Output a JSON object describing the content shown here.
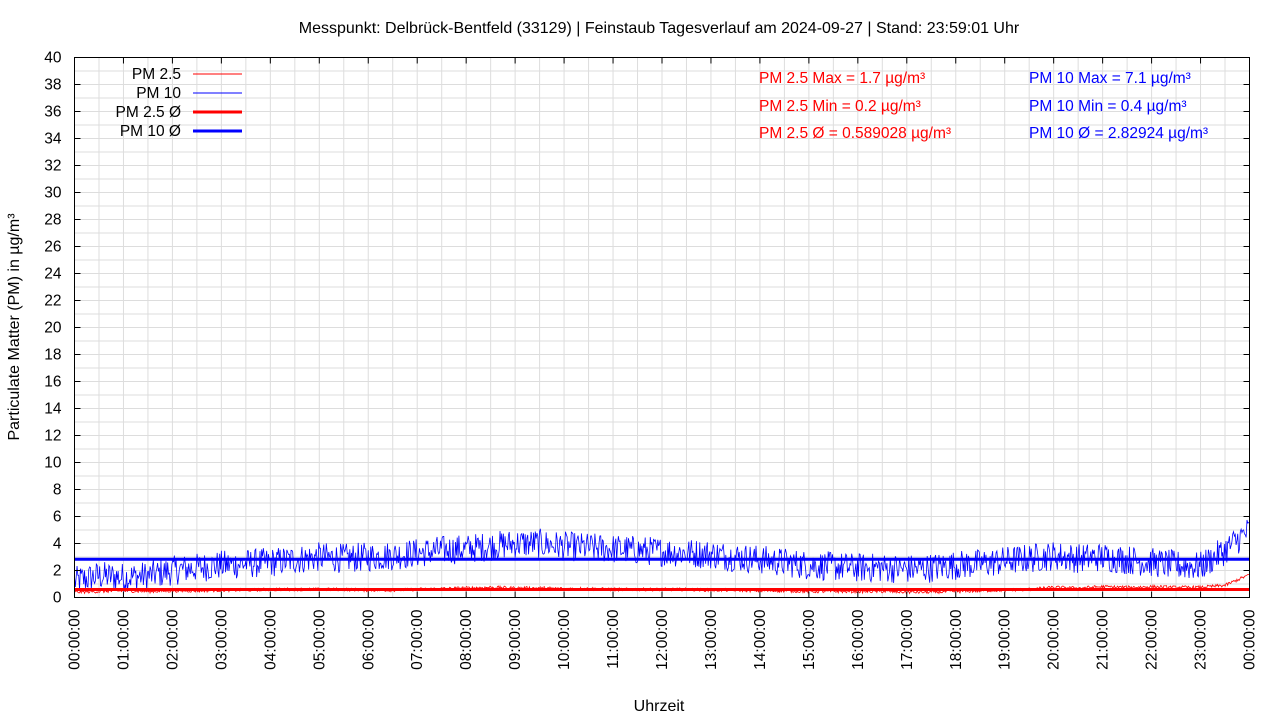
{
  "chart_data": {
    "type": "line",
    "title": "Messpunkt: Delbrück-Bentfeld (33129) | Feinstaub Tagesverlauf am 2024-09-27 | Stand: 23:59:01 Uhr",
    "xlabel": "Uhrzeit",
    "ylabel": "Particulate Matter (PM) in µg/m³",
    "ylim": [
      0,
      40
    ],
    "y_ticks": [
      "0",
      "2",
      "4",
      "6",
      "8",
      "10",
      "12",
      "14",
      "16",
      "18",
      "20",
      "22",
      "24",
      "26",
      "28",
      "30",
      "32",
      "34",
      "36",
      "38",
      "40"
    ],
    "x_ticks": [
      "00:00:00",
      "01:00:00",
      "02:00:00",
      "03:00:00",
      "04:00:00",
      "05:00:00",
      "06:00:00",
      "07:00:00",
      "08:00:00",
      "09:00:00",
      "10:00:00",
      "11:00:00",
      "12:00:00",
      "13:00:00",
      "14:00:00",
      "15:00:00",
      "16:00:00",
      "17:00:00",
      "18:00:00",
      "19:00:00",
      "20:00:00",
      "21:00:00",
      "22:00:00",
      "23:00:00",
      "00:00:00"
    ],
    "grid": true,
    "legend_position": "top-left",
    "series": [
      {
        "name": "PM 2.5",
        "color": "#ff0000",
        "hours": [
          0,
          0.5,
          1,
          1.5,
          2,
          2.5,
          3,
          3.5,
          4,
          4.5,
          5,
          5.5,
          6,
          6.5,
          7,
          7.5,
          8,
          8.5,
          9,
          9.5,
          10,
          10.5,
          11,
          11.5,
          12,
          12.5,
          13,
          13.5,
          14,
          14.5,
          15,
          15.5,
          16,
          16.5,
          17,
          17.5,
          18,
          18.5,
          19,
          19.5,
          20,
          20.5,
          21,
          21.5,
          22,
          22.5,
          23,
          23.5,
          24
        ],
        "values": [
          0.4,
          0.45,
          0.5,
          0.45,
          0.5,
          0.5,
          0.55,
          0.55,
          0.6,
          0.6,
          0.6,
          0.6,
          0.55,
          0.55,
          0.6,
          0.65,
          0.7,
          0.75,
          0.7,
          0.7,
          0.65,
          0.65,
          0.6,
          0.6,
          0.6,
          0.6,
          0.55,
          0.55,
          0.5,
          0.5,
          0.45,
          0.45,
          0.45,
          0.45,
          0.4,
          0.4,
          0.45,
          0.5,
          0.55,
          0.6,
          0.75,
          0.7,
          0.8,
          0.75,
          0.8,
          0.75,
          0.75,
          0.9,
          1.7
        ]
      },
      {
        "name": "PM 10",
        "color": "#0000ff",
        "hours": [
          0,
          0.5,
          1,
          1.5,
          2,
          2.5,
          3,
          3.5,
          4,
          4.5,
          5,
          5.5,
          6,
          6.5,
          7,
          7.5,
          8,
          8.5,
          9,
          9.5,
          10,
          10.5,
          11,
          11.5,
          12,
          12.5,
          13,
          13.5,
          14,
          14.5,
          15,
          15.5,
          16,
          16.5,
          17,
          17.5,
          18,
          18.5,
          19,
          19.5,
          20,
          20.5,
          21,
          21.5,
          22,
          22.5,
          23,
          23.5,
          24
        ],
        "values": [
          1.2,
          1.6,
          1.5,
          1.6,
          2.0,
          2.2,
          2.4,
          2.5,
          2.6,
          2.8,
          3.0,
          2.9,
          3.0,
          3.1,
          3.3,
          3.5,
          3.6,
          3.8,
          4.0,
          4.0,
          3.8,
          3.7,
          3.6,
          3.5,
          3.4,
          3.3,
          3.2,
          3.0,
          2.8,
          2.6,
          2.4,
          2.3,
          2.2,
          2.2,
          2.1,
          2.2,
          2.4,
          2.5,
          2.7,
          2.9,
          3.1,
          2.9,
          3.0,
          2.8,
          2.6,
          2.4,
          2.3,
          3.5,
          5.0
        ]
      },
      {
        "name": "PM 2.5 Ø",
        "color": "#ff0000",
        "constant": 0.589028
      },
      {
        "name": "PM 10 Ø",
        "color": "#0000ff",
        "constant": 2.82924
      }
    ],
    "pm25_max": 1.7,
    "pm25_min": 0.2,
    "pm10_max": 7.1,
    "pm10_min": 0.4
  },
  "stats": {
    "pm25_max": "PM 2.5 Max = 1.7 µg/m³",
    "pm25_min": "PM 2.5 Min = 0.2 µg/m³",
    "pm25_avg": "PM 2.5 Ø = 0.589028 µg/m³",
    "pm10_max": "PM 10 Max = 7.1 µg/m³",
    "pm10_min": "PM 10 Min = 0.4 µg/m³",
    "pm10_avg": "PM 10 Ø = 2.82924 µg/m³"
  },
  "colors": {
    "pm25": "#ff0000",
    "pm10": "#0000ff",
    "grid": "#dddddd"
  }
}
